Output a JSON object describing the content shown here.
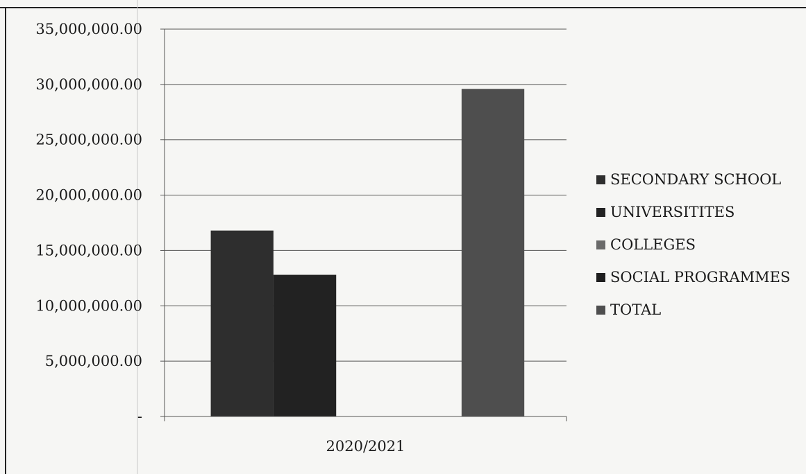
{
  "chart_data": {
    "type": "bar",
    "title": "",
    "xlabel": "",
    "ylabel": "",
    "categories": [
      "2020/2021"
    ],
    "ylim": [
      0,
      35000000
    ],
    "y_ticks": [
      {
        "value": 0,
        "label": "-"
      },
      {
        "value": 5000000,
        "label": "5,000,000.00"
      },
      {
        "value": 10000000,
        "label": "10,000,000.00"
      },
      {
        "value": 15000000,
        "label": "15,000,000.00"
      },
      {
        "value": 20000000,
        "label": "20,000,000.00"
      },
      {
        "value": 25000000,
        "label": "25,000,000.00"
      },
      {
        "value": 30000000,
        "label": "30,000,000.00"
      },
      {
        "value": 35000000,
        "label": "35,000,000.00"
      }
    ],
    "grid": true,
    "legend_position": "right",
    "series": [
      {
        "name": "SECONDARY SCHOOL",
        "values": [
          16800000
        ],
        "color": "#2e2e2e"
      },
      {
        "name": "UNIVERSITITES",
        "values": [
          12800000
        ],
        "color": "#222222"
      },
      {
        "name": "COLLEGES",
        "values": [
          0
        ],
        "color": "#6a6a6a"
      },
      {
        "name": "SOCIAL PROGRAMMES",
        "values": [
          0
        ],
        "color": "#1e1e1e"
      },
      {
        "name": "TOTAL",
        "values": [
          29600000
        ],
        "color": "#4e4e4e"
      }
    ]
  }
}
